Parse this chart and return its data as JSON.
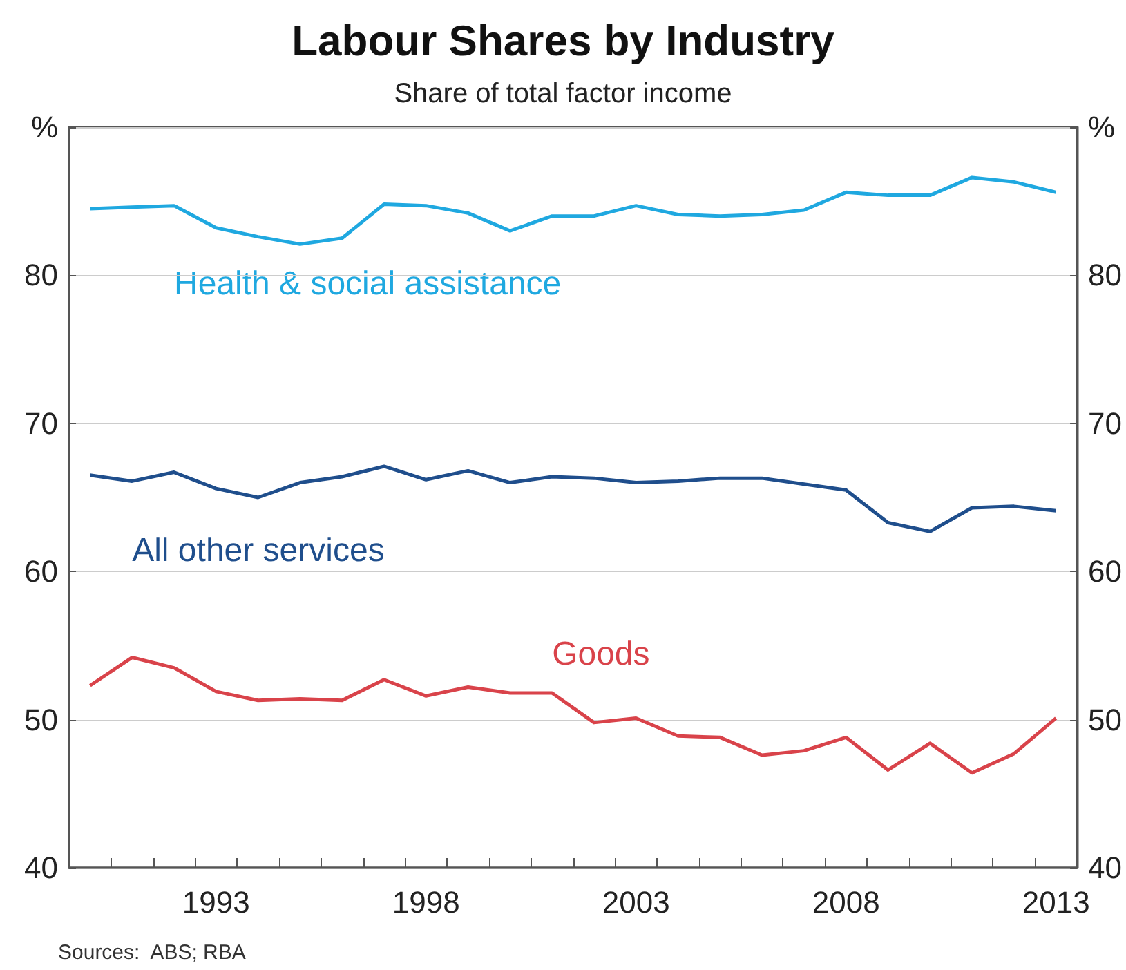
{
  "chart_data": {
    "type": "line",
    "title": "Labour Shares by Industry",
    "subtitle": "Share of total factor income",
    "categories": [
      null,
      null,
      null,
      "1993",
      null,
      null,
      null,
      null,
      "1998",
      null,
      null,
      null,
      null,
      "2003",
      null,
      null,
      null,
      null,
      "2008",
      null,
      null,
      null,
      null,
      "2013"
    ],
    "series": [
      {
        "name": "Health & social assistance",
        "color": "#1fa8e0",
        "values": [
          84.5,
          84.6,
          84.7,
          83.2,
          82.6,
          82.1,
          82.5,
          84.8,
          84.7,
          84.2,
          83.0,
          84.0,
          84.0,
          84.7,
          84.1,
          84.0,
          84.1,
          84.4,
          85.6,
          85.4,
          85.4,
          86.6,
          86.3,
          85.6
        ]
      },
      {
        "name": "All other services",
        "color": "#1f4e8c",
        "values": [
          66.5,
          66.1,
          66.7,
          65.6,
          65.0,
          66.0,
          66.4,
          67.1,
          66.2,
          66.8,
          66.0,
          66.4,
          66.3,
          66.0,
          66.1,
          66.3,
          66.3,
          65.9,
          65.5,
          63.3,
          62.7,
          64.3,
          64.4,
          64.1
        ]
      },
      {
        "name": "Goods",
        "color": "#d9434a",
        "values": [
          52.3,
          54.2,
          53.5,
          51.9,
          51.3,
          51.4,
          51.3,
          52.7,
          51.6,
          52.2,
          51.8,
          51.8,
          49.8,
          50.1,
          48.9,
          48.8,
          47.6,
          47.9,
          48.8,
          46.6,
          48.4,
          46.4,
          47.7,
          50.1
        ]
      }
    ],
    "ylim": [
      40,
      90
    ],
    "yticks": [
      40,
      50,
      60,
      70,
      80,
      {
        "value": 90,
        "label": "%"
      }
    ],
    "y2lim": [
      40,
      90
    ],
    "y2ticks": [
      40,
      50,
      60,
      70,
      80,
      {
        "value": 90,
        "label": "%"
      }
    ],
    "grid": "y",
    "legend": false,
    "marker": "none",
    "line_style": "solid",
    "annotations": [
      "Sources:  ABS; RBA"
    ]
  }
}
